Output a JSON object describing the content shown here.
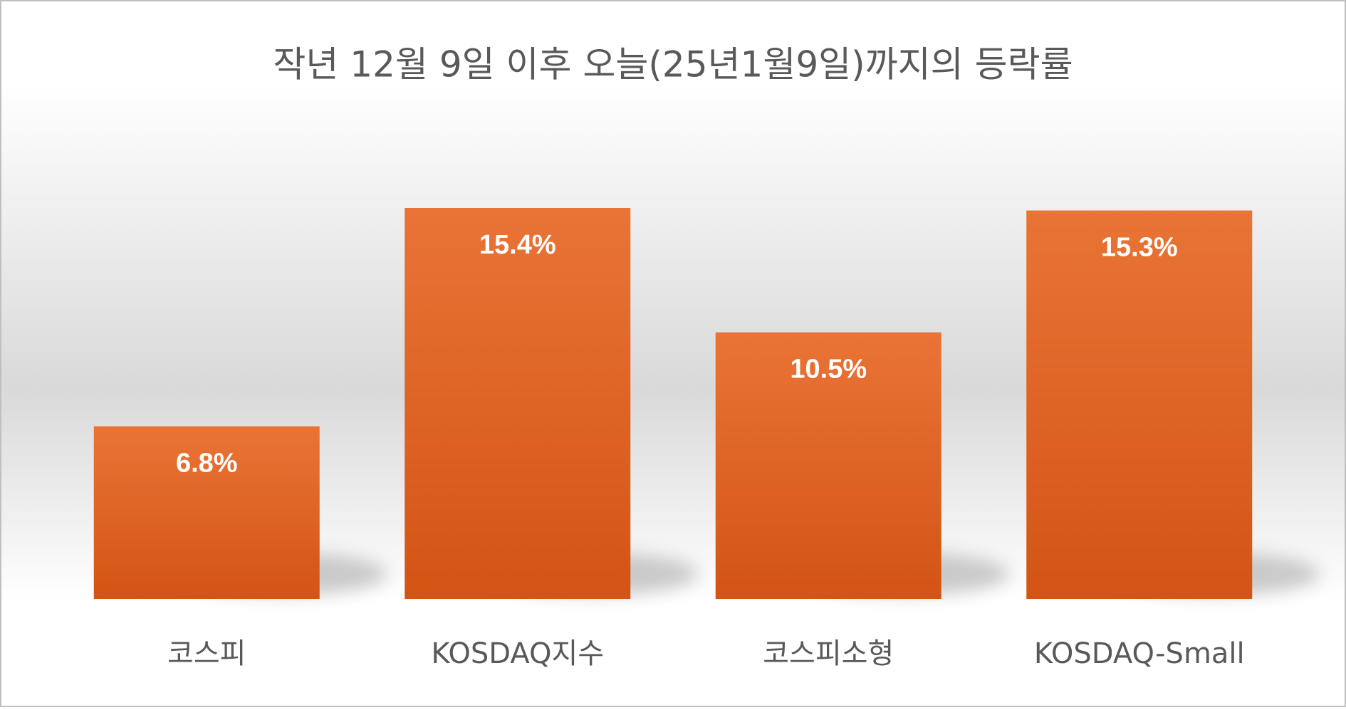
{
  "chart_data": {
    "type": "bar",
    "title": "작년 12월 9일 이후 오늘(25년1월9일)까지의 등락률",
    "categories": [
      "코스피",
      "KOSDAQ지수",
      "코스피소형",
      "KOSDAQ-Small"
    ],
    "values": [
      6.8,
      15.4,
      10.5,
      15.3
    ],
    "value_labels": [
      "6.8%",
      "15.4%",
      "10.5%",
      "15.3%"
    ],
    "color": "#e46c2a"
  }
}
